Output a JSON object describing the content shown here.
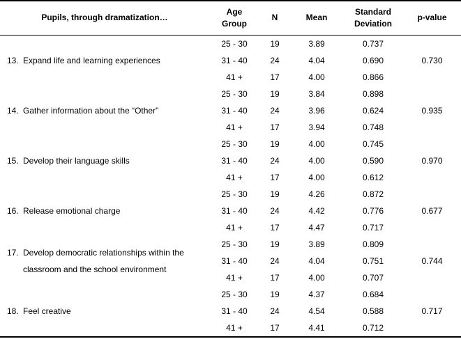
{
  "page": {
    "background_color": "#ffffff",
    "text_color": "#000000",
    "rule_color": "#000000"
  },
  "table": {
    "headers": {
      "item": "Pupils, through dramatization…",
      "age_group_line1": "Age",
      "age_group_line2": "Group",
      "n": "N",
      "mean": "Mean",
      "std_line1": "Standard",
      "std_line2": "Deviation",
      "p_value": "p-value"
    },
    "items": [
      {
        "number": "13.",
        "label": "Expand life and learning experiences",
        "p_value": "0.730",
        "rows": [
          {
            "age": "25 - 30",
            "n": "19",
            "mean": "3.89",
            "sd": "0.737"
          },
          {
            "age": "31 - 40",
            "n": "24",
            "mean": "4.04",
            "sd": "0.690"
          },
          {
            "age": "41 +",
            "n": "17",
            "mean": "4.00",
            "sd": "0.866"
          }
        ]
      },
      {
        "number": "14.",
        "label": "Gather information about the “Other”",
        "p_value": "0.935",
        "rows": [
          {
            "age": "25 - 30",
            "n": "19",
            "mean": "3.84",
            "sd": "0.898"
          },
          {
            "age": "31 - 40",
            "n": "24",
            "mean": "3.96",
            "sd": "0.624"
          },
          {
            "age": "41 +",
            "n": "17",
            "mean": "3.94",
            "sd": "0.748"
          }
        ]
      },
      {
        "number": "15.",
        "label": "Develop their language skills",
        "p_value": "0.970",
        "rows": [
          {
            "age": "25 - 30",
            "n": "19",
            "mean": "4.00",
            "sd": "0.745"
          },
          {
            "age": "31 - 40",
            "n": "24",
            "mean": "4.00",
            "sd": "0.590"
          },
          {
            "age": "41 +",
            "n": "17",
            "mean": "4.00",
            "sd": "0.612"
          }
        ]
      },
      {
        "number": "16.",
        "label": "Release emotional charge",
        "p_value": "0.677",
        "rows": [
          {
            "age": "25 - 30",
            "n": "19",
            "mean": "4.26",
            "sd": "0.872"
          },
          {
            "age": "31 - 40",
            "n": "24",
            "mean": "4.42",
            "sd": "0.776"
          },
          {
            "age": "41 +",
            "n": "17",
            "mean": "4.47",
            "sd": "0.717"
          }
        ]
      },
      {
        "number": "17.",
        "label": "Develop democratic relationships within the classroom and the school environment",
        "p_value": "0.744",
        "rows": [
          {
            "age": "25 - 30",
            "n": "19",
            "mean": "3.89",
            "sd": "0.809"
          },
          {
            "age": "31 - 40",
            "n": "24",
            "mean": "4.04",
            "sd": "0.751"
          },
          {
            "age": "41 +",
            "n": "17",
            "mean": "4.00",
            "sd": "0.707"
          }
        ]
      },
      {
        "number": "18.",
        "label": "Feel creative",
        "p_value": "0.717",
        "rows": [
          {
            "age": "25 - 30",
            "n": "19",
            "mean": "4.37",
            "sd": "0.684"
          },
          {
            "age": "31 - 40",
            "n": "24",
            "mean": "4.54",
            "sd": "0.588"
          },
          {
            "age": "41 +",
            "n": "17",
            "mean": "4.41",
            "sd": "0.712"
          }
        ]
      }
    ]
  }
}
